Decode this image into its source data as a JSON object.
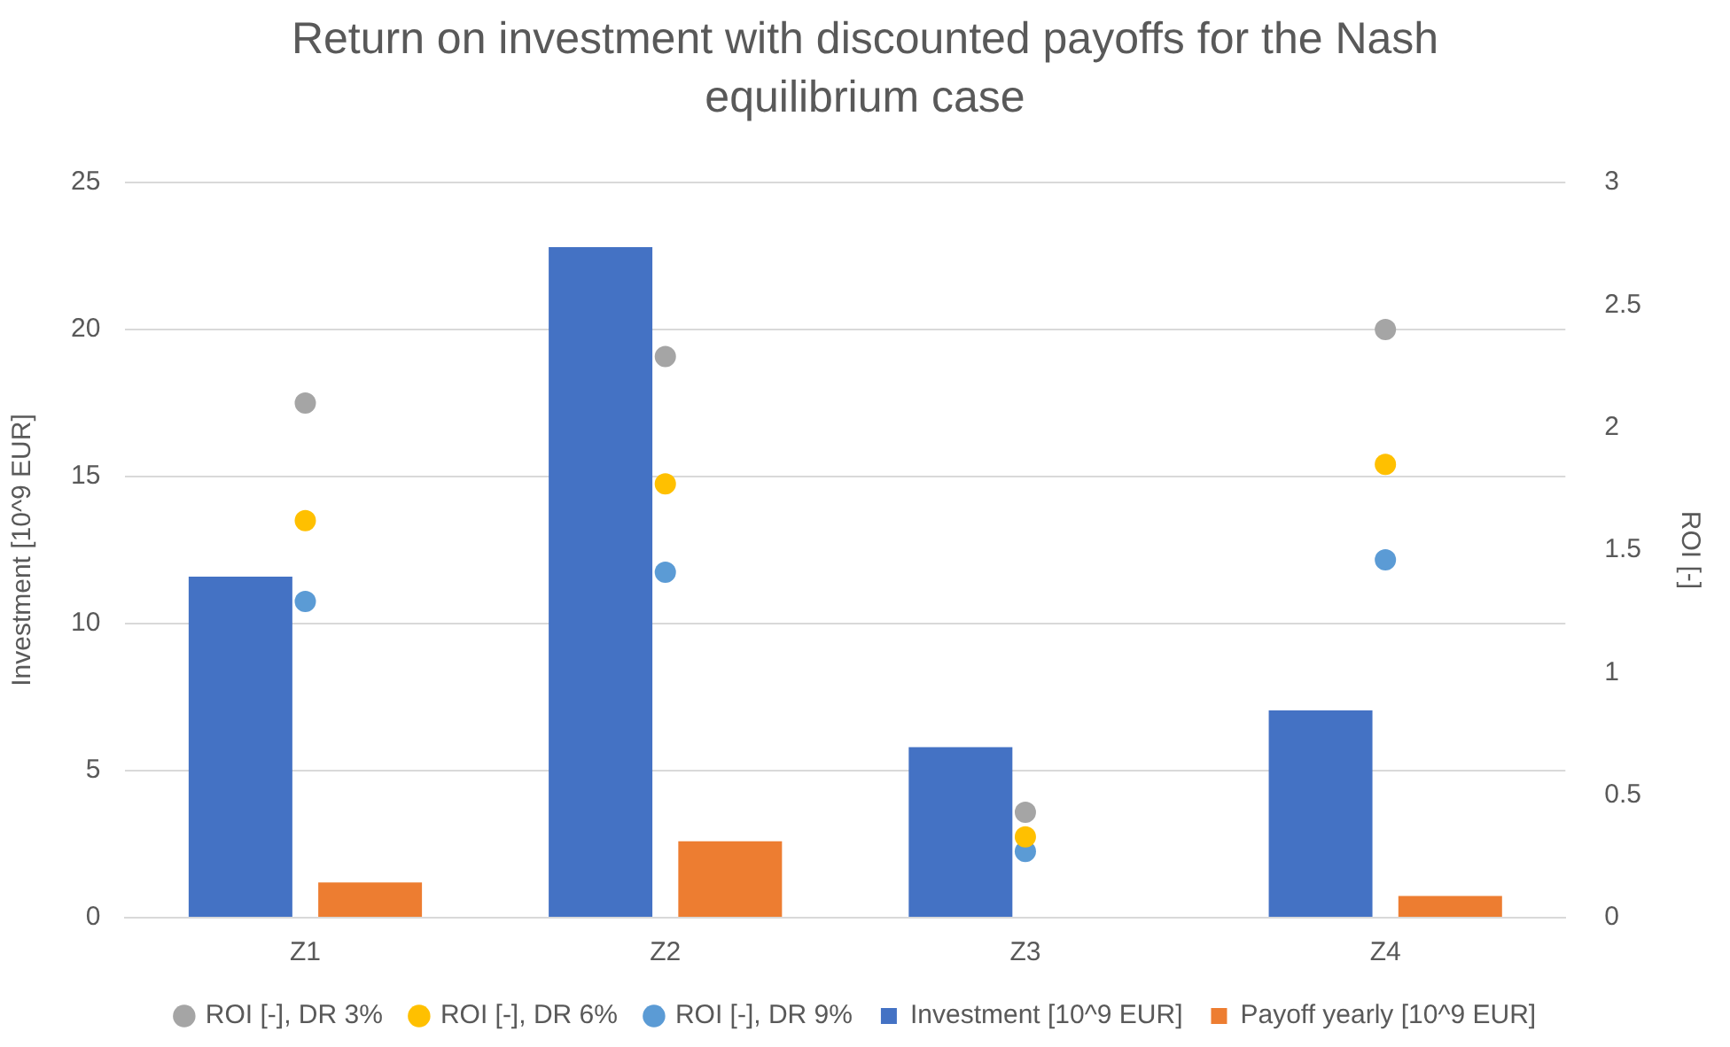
{
  "chart_data": {
    "type": "bar",
    "title": "Return on investment with discounted payoffs for the Nash equilibrium case",
    "ylabel": "Investment [10^9 EUR]",
    "y2label": "ROI [-]",
    "categories": [
      "Z1",
      "Z2",
      "Z3",
      "Z4"
    ],
    "series": [
      {
        "name": "Investment [10^9 EUR]",
        "color": "#4472c4",
        "values": [
          11.6,
          22.8,
          5.8,
          7.05
        ]
      },
      {
        "name": "Payoff yearly [10^9 EUR]",
        "color": "#ed7d31",
        "values": [
          1.2,
          2.6,
          null,
          0.74
        ]
      },
      {
        "name": "ROI [-], DR 3%",
        "type": "scatter",
        "axis": "y2",
        "color": "#a5a5a5",
        "values": [
          2.1,
          2.29,
          0.43,
          2.4
        ]
      },
      {
        "name": "ROI [-], DR 6%",
        "type": "scatter",
        "axis": "y2",
        "color": "#ffc000",
        "values": [
          1.62,
          1.77,
          0.33,
          1.85
        ]
      },
      {
        "name": "ROI [-], DR 9%",
        "type": "scatter",
        "axis": "y2",
        "color": "#5b9bd5",
        "values": [
          1.29,
          1.41,
          0.27,
          1.46
        ]
      }
    ],
    "ylim": [
      0,
      25
    ],
    "yticks": [
      0,
      5,
      10,
      15,
      20,
      25
    ],
    "y2lim": [
      0,
      3
    ],
    "y2ticks": [
      0,
      0.5,
      1,
      1.5,
      2,
      2.5,
      3
    ],
    "grid": "y",
    "legend": "bottom",
    "marker": "circle"
  }
}
